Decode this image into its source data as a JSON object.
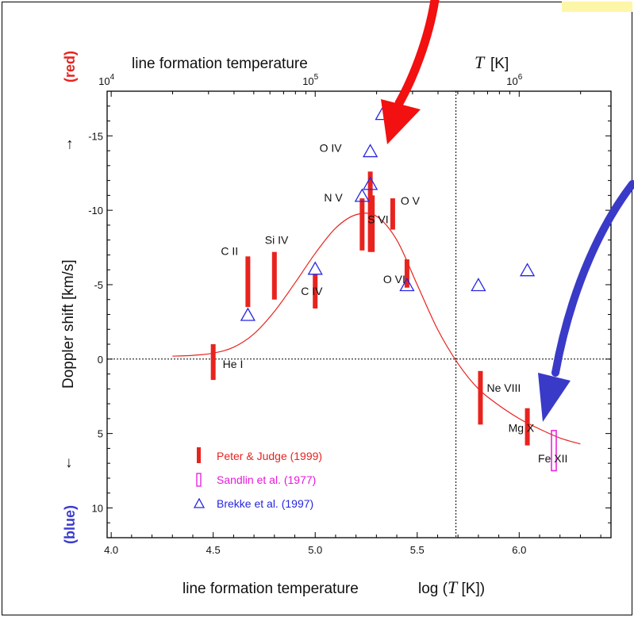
{
  "chart_data": {
    "type": "scatter",
    "x_axis_bottom": {
      "label_text": "line formation temperature",
      "label_log": "log (",
      "label_T": "T",
      "label_unit": " [K])",
      "ticks": [
        "4.0",
        "4.5",
        "5.0",
        "5.5",
        "6.0"
      ],
      "range": [
        3.98,
        6.45
      ]
    },
    "x_axis_top": {
      "label_text": "line formation temperature",
      "label_T": "T",
      "label_unit": "[K]",
      "ticks": [
        {
          "base": "10",
          "exp": "4",
          "logT": 4
        },
        {
          "base": "10",
          "exp": "5",
          "logT": 5
        },
        {
          "base": "10",
          "exp": "6",
          "logT": 6
        }
      ]
    },
    "y_axis": {
      "label": "Doppler shift   [km/s]",
      "ticks": [
        "-15",
        "-10",
        "-5",
        "0",
        "5",
        "10"
      ],
      "range": [
        12,
        -18
      ],
      "up_arrow": "→",
      "down_arrow": "↓",
      "top_word": "(red)",
      "bottom_word": "(blue)",
      "top_color": "#e8231e",
      "bottom_color": "#3b3bcf"
    },
    "vertical_line_logT": 5.69,
    "series": [
      {
        "name": "Peter & Judge (1999)",
        "marker": "bar",
        "color": "#e8231e",
        "points": [
          {
            "label": "He I",
            "logT": 4.5,
            "lo": -1.0,
            "hi": 1.4
          },
          {
            "label": "C II",
            "logT": 4.67,
            "lo": -6.9,
            "hi": -3.5
          },
          {
            "label": "Si IV",
            "logT": 4.8,
            "lo": -7.2,
            "hi": -4.0
          },
          {
            "label": "C IV",
            "logT": 5.0,
            "lo": -5.7,
            "hi": -3.4
          },
          {
            "label": "N V",
            "logT": 5.23,
            "lo": -10.8,
            "hi": -7.3
          },
          {
            "label": "O IV",
            "logT": 5.27,
            "lo": -12.6,
            "hi": -7.2
          },
          {
            "label": "S VI",
            "logT": 5.28,
            "lo": -11.0,
            "hi": -7.2
          },
          {
            "label": "O V",
            "logT": 5.38,
            "lo": -10.8,
            "hi": -8.7
          },
          {
            "label": "O VI",
            "logT": 5.45,
            "lo": -6.7,
            "hi": -4.8
          },
          {
            "label": "Ne VIII",
            "logT": 5.81,
            "lo": 0.8,
            "hi": 4.4
          },
          {
            "label": "Mg X",
            "logT": 6.04,
            "lo": 3.3,
            "hi": 5.8
          }
        ]
      },
      {
        "name": "Sandlin et al. (1977)",
        "marker": "open-bar",
        "color": "#e619d8",
        "points": [
          {
            "label": "Fe XII",
            "logT": 6.17,
            "lo": 4.8,
            "hi": 7.5
          }
        ]
      },
      {
        "name": "Brekke et al. (1997)",
        "marker": "triangle",
        "color": "#2626e0",
        "points": [
          {
            "logT": 4.67,
            "v": -3.0
          },
          {
            "logT": 5.0,
            "v": -6.1
          },
          {
            "logT": 5.23,
            "v": -11.0
          },
          {
            "logT": 5.27,
            "v": -11.8
          },
          {
            "logT": 5.27,
            "v": -14.0
          },
          {
            "logT": 5.33,
            "v": -16.5
          },
          {
            "logT": 5.45,
            "v": -5.0
          },
          {
            "logT": 5.8,
            "v": -5.0
          },
          {
            "logT": 6.04,
            "v": -6.0
          }
        ]
      }
    ],
    "model_curve": {
      "color": "#e8231e",
      "points": [
        [
          4.3,
          -0.2
        ],
        [
          4.4,
          -0.25
        ],
        [
          4.5,
          -0.4
        ],
        [
          4.6,
          -0.8
        ],
        [
          4.7,
          -1.7
        ],
        [
          4.8,
          -3.2
        ],
        [
          4.9,
          -5.1
        ],
        [
          5.0,
          -7.1
        ],
        [
          5.1,
          -8.8
        ],
        [
          5.2,
          -9.7
        ],
        [
          5.3,
          -9.6
        ],
        [
          5.4,
          -8.0
        ],
        [
          5.5,
          -5.0
        ],
        [
          5.6,
          -2.0
        ],
        [
          5.7,
          0.3
        ],
        [
          5.8,
          2.0
        ],
        [
          5.9,
          3.1
        ],
        [
          6.0,
          4.0
        ],
        [
          6.1,
          4.7
        ],
        [
          6.2,
          5.3
        ],
        [
          6.3,
          5.7
        ]
      ]
    },
    "legend": {
      "placement": "bottom-left",
      "entries": [
        {
          "label": "Peter & Judge (1999)",
          "color": "#e8231e",
          "marker": "bar"
        },
        {
          "label": "Sandlin et al. (1977)",
          "color": "#e619d8",
          "marker": "open-bar"
        },
        {
          "label": "Brekke et al. (1997)",
          "color": "#2626e0",
          "marker": "triangle"
        }
      ]
    },
    "arrows": [
      {
        "color": "#f21010"
      },
      {
        "color": "#3a3ac8"
      }
    ]
  }
}
